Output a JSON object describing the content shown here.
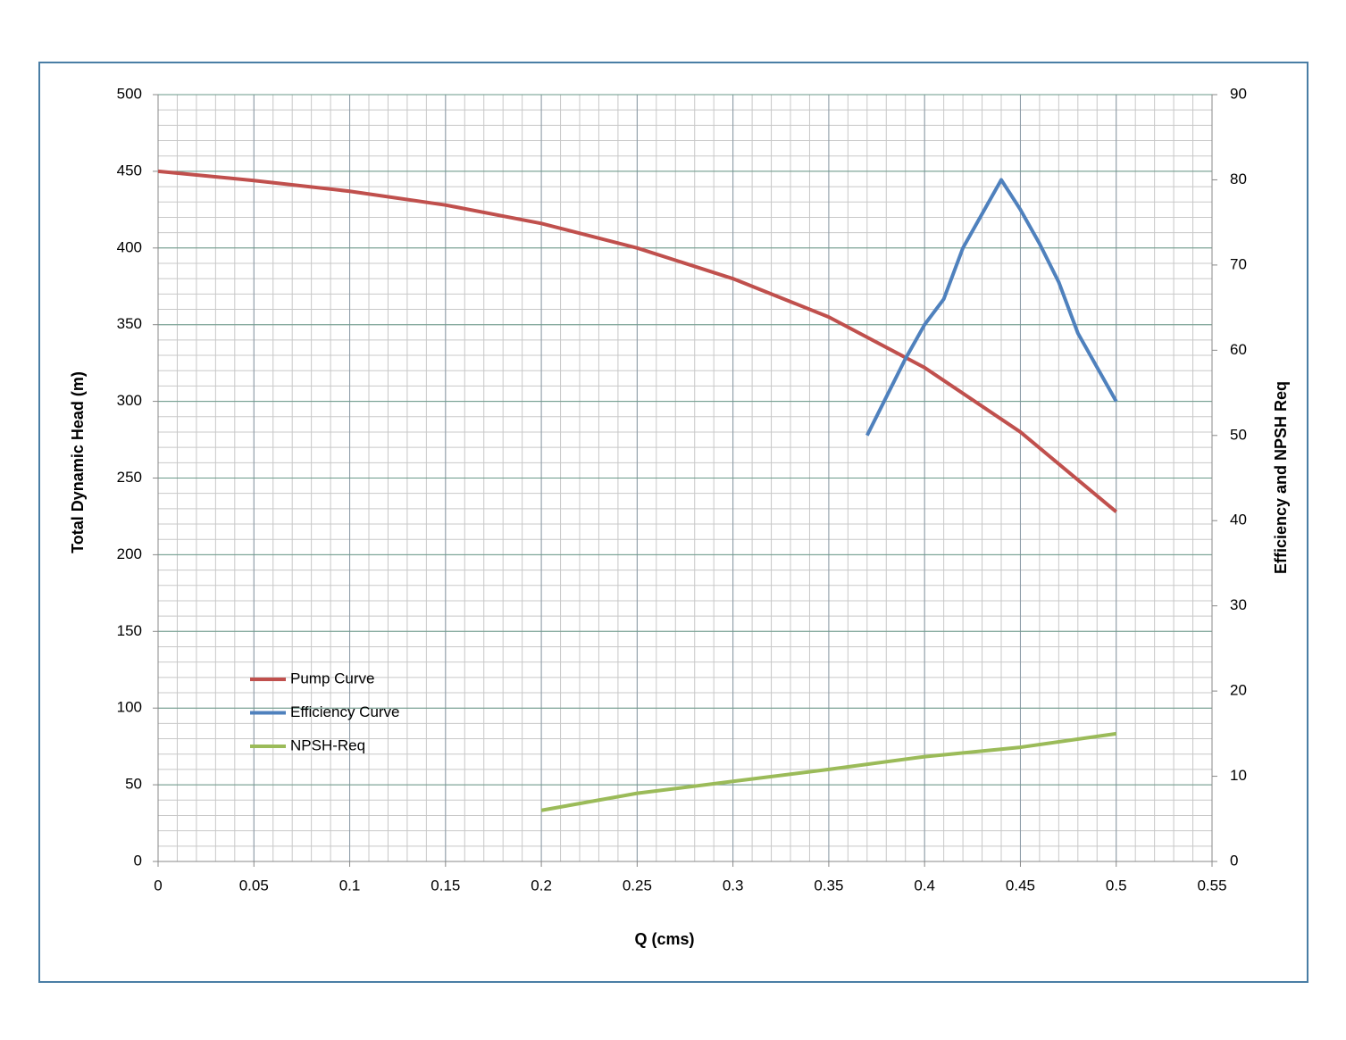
{
  "chart_data": {
    "type": "line",
    "x_label": "Q (cms)",
    "y_label": "Total  Dynamic Head (m)",
    "y2_label": "Efficiency and NPSH Req",
    "xlim": [
      0,
      0.55
    ],
    "xticks": [
      0,
      0.05,
      0.1,
      0.15,
      0.2,
      0.25,
      0.3,
      0.35,
      0.4,
      0.45,
      0.5,
      0.55
    ],
    "ylim": [
      0,
      500
    ],
    "yticks": [
      0,
      50,
      100,
      150,
      200,
      250,
      300,
      350,
      400,
      450,
      500
    ],
    "y2lim": [
      0,
      90
    ],
    "y2ticks": [
      0,
      10,
      20,
      30,
      40,
      50,
      60,
      70,
      80,
      90
    ],
    "grid": true,
    "minor_grid": true,
    "legend": "left",
    "series": [
      {
        "name": "Pump Curve",
        "color": "#c0504d",
        "x": [
          0,
          0.05,
          0.1,
          0.15,
          0.2,
          0.25,
          0.3,
          0.35,
          0.4,
          0.45,
          0.5
        ],
        "values": [
          450,
          444,
          437,
          428,
          416,
          400,
          380,
          355,
          322,
          280,
          228
        ]
      },
      {
        "name": "Efficiency Curve",
        "color": "#4f81bd",
        "axis": "y2",
        "x": [
          0.37,
          0.38,
          0.39,
          0.4,
          0.41,
          0.42,
          0.43,
          0.44,
          0.45,
          0.46,
          0.47,
          0.48,
          0.49,
          0.5
        ],
        "values": [
          50,
          54.5,
          59,
          63,
          66,
          72,
          76,
          80,
          76.5,
          72.5,
          68,
          62,
          58,
          54
        ]
      },
      {
        "name": "NPSH-Req",
        "color": "#9bbb59",
        "axis": "y2",
        "x": [
          0.2,
          0.25,
          0.3,
          0.35,
          0.4,
          0.45,
          0.5
        ],
        "values": [
          6,
          8,
          9.4,
          10.8,
          12.3,
          13.4,
          15
        ]
      }
    ]
  }
}
